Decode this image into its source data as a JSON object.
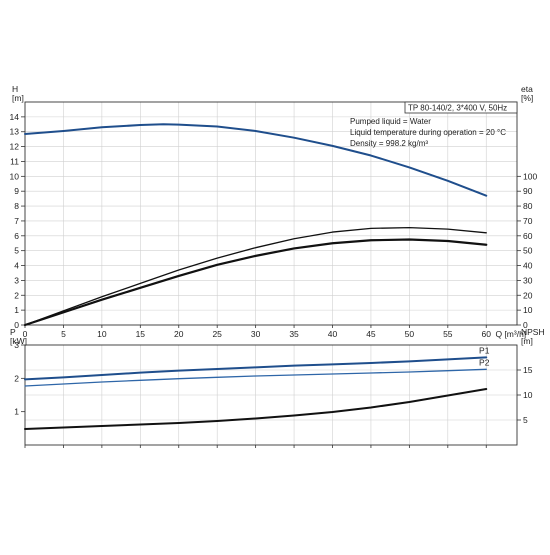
{
  "info_box": {
    "title": "TP 80-140/2, 3*400 V, 50Hz",
    "lines": [
      "Pumped liquid = Water",
      "Liquid temperature during operation = 20 °C",
      "Density = 998.2 kg/m³"
    ]
  },
  "colors": {
    "head_curve": "#1f4e8c",
    "p1_curve": "#1f4e8c",
    "p2_curve": "#2e66a8",
    "eta_curve": "#111111",
    "npsh_curve": "#111111",
    "grid": "#d0d0d0",
    "frame": "#333333"
  },
  "chart_data": [
    {
      "type": "line",
      "name": "head-efficiency",
      "xlabel": "Q [m³/h]",
      "ylabel": "H\n[m]",
      "y2label": "eta\n[%]",
      "xlim": [
        0,
        64
      ],
      "ylim": [
        0,
        15
      ],
      "y2lim": [
        0,
        150
      ],
      "x_ticks": [
        0,
        5,
        10,
        15,
        20,
        25,
        30,
        35,
        40,
        45,
        50,
        55,
        60
      ],
      "y_ticks": [
        0,
        1,
        2,
        3,
        4,
        5,
        6,
        7,
        8,
        9,
        10,
        11,
        12,
        13,
        14
      ],
      "y2_ticks": [
        0,
        10,
        20,
        30,
        40,
        50,
        60,
        70,
        80,
        90,
        100
      ],
      "grid": true,
      "series": [
        {
          "name": "H",
          "axis": "left",
          "color_key": "head_curve",
          "width": 2,
          "x": [
            0,
            5,
            10,
            15,
            18,
            20,
            25,
            30,
            35,
            40,
            45,
            50,
            55,
            60
          ],
          "y": [
            12.85,
            13.05,
            13.3,
            13.45,
            13.5,
            13.48,
            13.35,
            13.05,
            12.6,
            12.05,
            11.4,
            10.6,
            9.7,
            8.7
          ]
        },
        {
          "name": "eta",
          "axis": "right",
          "color_key": "eta_curve",
          "width": 1.3,
          "x": [
            0,
            5,
            10,
            15,
            20,
            25,
            30,
            35,
            40,
            45,
            50,
            55,
            60
          ],
          "y": [
            0,
            9.5,
            19,
            28,
            37,
            45,
            52,
            58,
            62.5,
            65,
            65.5,
            64.5,
            62
          ]
        },
        {
          "name": "eta-unit",
          "axis": "right",
          "color_key": "eta_curve",
          "width": 2.2,
          "x": [
            0,
            5,
            10,
            15,
            20,
            25,
            30,
            35,
            40,
            45,
            50,
            55,
            60
          ],
          "y": [
            0,
            8.5,
            17,
            25,
            33,
            40.5,
            46.5,
            51.5,
            55,
            57,
            57.5,
            56.5,
            54
          ]
        }
      ]
    },
    {
      "type": "line",
      "name": "power-npsh",
      "ylabel": "P\n[kW]",
      "y2label": "NPSH\n[m]",
      "xlim": [
        0,
        64
      ],
      "ylim": [
        0,
        3
      ],
      "y2lim": [
        0,
        20
      ],
      "y_ticks": [
        1,
        2,
        3
      ],
      "y2_ticks": [
        5,
        10,
        15
      ],
      "grid": true,
      "series": [
        {
          "name": "P1",
          "label": "P1",
          "axis": "left",
          "color_key": "p1_curve",
          "width": 2,
          "x": [
            0,
            5,
            10,
            15,
            20,
            25,
            30,
            35,
            40,
            45,
            50,
            55,
            60
          ],
          "y": [
            1.97,
            2.03,
            2.1,
            2.17,
            2.23,
            2.28,
            2.33,
            2.38,
            2.42,
            2.46,
            2.51,
            2.57,
            2.63
          ]
        },
        {
          "name": "P2",
          "label": "P2",
          "axis": "left",
          "color_key": "p2_curve",
          "width": 1.3,
          "x": [
            0,
            5,
            10,
            15,
            20,
            25,
            30,
            35,
            40,
            45,
            50,
            55,
            60
          ],
          "y": [
            1.77,
            1.83,
            1.89,
            1.94,
            1.99,
            2.03,
            2.07,
            2.1,
            2.13,
            2.16,
            2.19,
            2.23,
            2.27
          ]
        },
        {
          "name": "NPSH",
          "axis": "right",
          "color_key": "npsh_curve",
          "width": 2,
          "x": [
            0,
            5,
            10,
            15,
            20,
            25,
            30,
            35,
            40,
            45,
            50,
            55,
            60
          ],
          "y": [
            3.2,
            3.5,
            3.8,
            4.1,
            4.4,
            4.8,
            5.3,
            5.9,
            6.6,
            7.5,
            8.6,
            9.9,
            11.2
          ]
        }
      ]
    }
  ]
}
